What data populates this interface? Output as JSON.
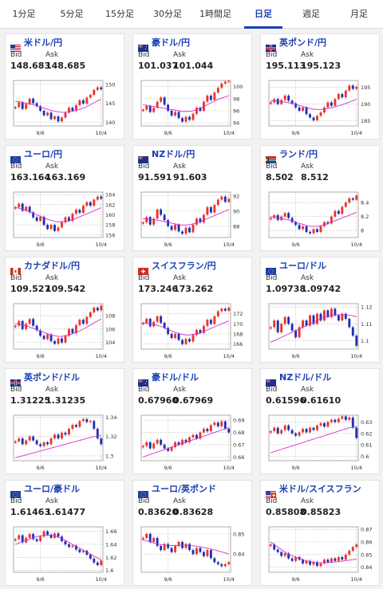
{
  "tabs": [
    {
      "label": "1分足",
      "active": false
    },
    {
      "label": "5分足",
      "active": false
    },
    {
      "label": "15分足",
      "active": false
    },
    {
      "label": "30分足",
      "active": false
    },
    {
      "label": "1時間足",
      "active": false
    },
    {
      "label": "日足",
      "active": true
    },
    {
      "label": "週足",
      "active": false
    },
    {
      "label": "月足",
      "active": false
    }
  ],
  "labels": {
    "bid": "Bid",
    "ask": "Ask"
  },
  "chart_style": {
    "up": "#e8352b",
    "down": "#1f2fb5",
    "ma": "#d22fd2",
    "grid": "#b8b8b8"
  },
  "pairs": [
    {
      "name": "米ドル/円",
      "flag": "us",
      "bid": "148.683",
      "ask": "148.685",
      "chart_data": {
        "type": "candlestick",
        "x_labels": [
          "9/6",
          "10/4"
        ],
        "y_ticks": [
          "150",
          "145",
          "140"
        ],
        "ylim": [
          139,
          151
        ],
        "trend": [
          144.0,
          145.2,
          143.5,
          144.8,
          146.2,
          145.0,
          144.2,
          143.0,
          141.8,
          142.5,
          140.8,
          141.5,
          140.2,
          141.2,
          142.5,
          143.8,
          143.0,
          144.5,
          145.8,
          144.9,
          146.5,
          147.2,
          148.5,
          149.2,
          148.7
        ],
        "ma": [
          145.5,
          145.4,
          145.2,
          145.0,
          144.8,
          144.6,
          144.3,
          144.0,
          143.7,
          143.4,
          143.1,
          142.9,
          142.7,
          142.6,
          142.6,
          142.7,
          142.9,
          143.1,
          143.4,
          143.7,
          144.1,
          144.6,
          145.1,
          145.6,
          146.0
        ]
      }
    },
    {
      "name": "豪ドル/円",
      "flag": "au",
      "bid": "101.037",
      "ask": "101.044",
      "chart_data": {
        "type": "candlestick",
        "x_labels": [
          "9/6",
          "10/4"
        ],
        "y_ticks": [
          "100",
          "98",
          "96",
          "94"
        ],
        "ylim": [
          93.5,
          101
        ],
        "trend": [
          96.2,
          96.8,
          95.8,
          96.5,
          97.5,
          98.2,
          97.0,
          96.0,
          95.2,
          95.8,
          94.8,
          94.2,
          95.0,
          94.5,
          95.5,
          96.5,
          96.0,
          97.5,
          98.5,
          97.8,
          99.0,
          99.8,
          100.5,
          100.8,
          100.9
        ],
        "ma": [
          97.0,
          96.9,
          96.8,
          96.7,
          96.6,
          96.5,
          96.4,
          96.3,
          96.2,
          96.1,
          96.0,
          95.9,
          95.9,
          95.9,
          96.0,
          96.2,
          96.4,
          96.7,
          97.0,
          97.3,
          97.6,
          97.9,
          98.1,
          98.3,
          98.5
        ]
      }
    },
    {
      "name": "英ポンド/円",
      "flag": "gb",
      "bid": "195.113",
      "ask": "195.123",
      "chart_data": {
        "type": "candlestick",
        "x_labels": [
          "9/6",
          "10/4"
        ],
        "y_ticks": [
          "195",
          "190",
          "185"
        ],
        "ylim": [
          183.5,
          197
        ],
        "trend": [
          190.5,
          191.5,
          190.0,
          191.2,
          192.5,
          191.0,
          190.2,
          189.0,
          188.0,
          189.0,
          187.0,
          186.0,
          185.2,
          186.5,
          187.5,
          189.0,
          190.5,
          189.5,
          191.5,
          193.0,
          192.0,
          194.0,
          195.5,
          194.5,
          195.1
        ],
        "ma": [
          191.0,
          190.9,
          190.8,
          190.7,
          190.6,
          190.4,
          190.2,
          189.9,
          189.6,
          189.3,
          189.0,
          188.7,
          188.5,
          188.4,
          188.4,
          188.5,
          188.7,
          188.9,
          189.2,
          189.5,
          189.8,
          190.2,
          190.6,
          191.0,
          191.4
        ]
      }
    },
    {
      "name": "ユーロ/円",
      "flag": "eu",
      "bid": "163.164",
      "ask": "163.169",
      "chart_data": {
        "type": "candlestick",
        "x_labels": [
          "9/6",
          "10/4"
        ],
        "y_ticks": [
          "164",
          "162",
          "160",
          "158",
          "156"
        ],
        "ylim": [
          155.5,
          164.5
        ],
        "trend": [
          161.5,
          162.2,
          160.8,
          161.6,
          160.5,
          159.5,
          158.8,
          159.6,
          158.0,
          157.2,
          158.0,
          156.8,
          157.5,
          158.5,
          159.5,
          158.8,
          160.2,
          161.0,
          160.4,
          161.8,
          162.5,
          161.8,
          163.0,
          163.6,
          163.2
        ],
        "ma": [
          161.5,
          161.3,
          161.1,
          160.9,
          160.6,
          160.3,
          160.0,
          159.7,
          159.4,
          159.1,
          158.9,
          158.7,
          158.6,
          158.6,
          158.7,
          158.8,
          159.0,
          159.3,
          159.6,
          159.9,
          160.2,
          160.5,
          160.8,
          161.1,
          161.4
        ]
      }
    },
    {
      "name": "NZドル/円",
      "flag": "nz",
      "bid": "91.591",
      "ask": "91.603",
      "chart_data": {
        "type": "candlestick",
        "x_labels": [
          "9/6",
          "10/4"
        ],
        "y_ticks": [
          "92",
          "90",
          "88"
        ],
        "ylim": [
          86.5,
          92.5
        ],
        "trend": [
          88.5,
          89.2,
          88.2,
          89.0,
          90.2,
          89.5,
          88.8,
          88.0,
          87.5,
          88.2,
          87.3,
          87.0,
          87.8,
          87.2,
          88.2,
          89.0,
          88.5,
          89.5,
          90.5,
          89.8,
          90.8,
          91.5,
          91.9,
          91.2,
          91.6
        ],
        "ma": [
          89.0,
          88.95,
          88.9,
          88.85,
          88.8,
          88.7,
          88.6,
          88.5,
          88.4,
          88.3,
          88.2,
          88.15,
          88.15,
          88.2,
          88.3,
          88.45,
          88.6,
          88.8,
          89.0,
          89.2,
          89.4,
          89.6,
          89.8,
          90.0,
          90.2
        ]
      }
    },
    {
      "name": "ランド/円",
      "flag": "za",
      "bid": "8.502",
      "ask": "8.512",
      "chart_data": {
        "type": "candlestick",
        "x_labels": [
          "9/6",
          "10/4"
        ],
        "y_ticks": [
          "8.4",
          "8.2",
          "8"
        ],
        "ylim": [
          7.9,
          8.55
        ],
        "trend": [
          8.18,
          8.22,
          8.15,
          8.2,
          8.25,
          8.18,
          8.12,
          8.08,
          8.02,
          8.06,
          7.98,
          7.96,
          8.02,
          7.98,
          8.06,
          8.12,
          8.1,
          8.2,
          8.28,
          8.24,
          8.34,
          8.4,
          8.46,
          8.44,
          8.5
        ],
        "ma": [
          8.2,
          8.19,
          8.18,
          8.17,
          8.16,
          8.15,
          8.14,
          8.12,
          8.1,
          8.09,
          8.07,
          8.06,
          8.06,
          8.06,
          8.07,
          8.08,
          8.1,
          8.12,
          8.14,
          8.16,
          8.18,
          8.2,
          8.22,
          8.24,
          8.26
        ]
      }
    },
    {
      "name": "カナダドル/円",
      "flag": "ca",
      "bid": "109.527",
      "ask": "109.542",
      "chart_data": {
        "type": "candlestick",
        "x_labels": [
          "9/6",
          "10/4"
        ],
        "y_ticks": [
          "108",
          "106",
          "104"
        ],
        "ylim": [
          103,
          109.8
        ],
        "trend": [
          106.5,
          107.2,
          106.0,
          106.8,
          107.5,
          106.5,
          105.8,
          105.0,
          104.5,
          105.2,
          104.2,
          103.8,
          104.6,
          104.0,
          105.0,
          106.0,
          105.4,
          106.6,
          107.4,
          106.8,
          107.8,
          108.5,
          109.2,
          108.8,
          109.5
        ],
        "ma": [
          106.8,
          106.7,
          106.6,
          106.5,
          106.3,
          106.1,
          105.9,
          105.7,
          105.5,
          105.3,
          105.1,
          105.0,
          104.9,
          104.9,
          105.0,
          105.1,
          105.3,
          105.5,
          105.7,
          106.0,
          106.3,
          106.6,
          106.9,
          107.2,
          107.5
        ]
      }
    },
    {
      "name": "スイスフラン/円",
      "flag": "ch",
      "bid": "173.246",
      "ask": "173.262",
      "chart_data": {
        "type": "candlestick",
        "x_labels": [
          "9/6",
          "10/4"
        ],
        "y_ticks": [
          "172",
          "170",
          "168",
          "166"
        ],
        "ylim": [
          165,
          174
        ],
        "trend": [
          170.2,
          171.0,
          169.5,
          170.4,
          171.5,
          170.2,
          169.2,
          168.0,
          167.2,
          168.0,
          166.8,
          166.0,
          167.0,
          166.5,
          167.8,
          168.8,
          168.2,
          169.6,
          170.8,
          170.0,
          171.5,
          172.5,
          173.0,
          172.6,
          173.2
        ],
        "ma": [
          170.2,
          170.1,
          170.0,
          169.9,
          169.7,
          169.5,
          169.2,
          168.9,
          168.6,
          168.3,
          168.1,
          167.9,
          167.8,
          167.8,
          167.9,
          168.0,
          168.2,
          168.5,
          168.8,
          169.1,
          169.4,
          169.7,
          170.0,
          170.3,
          170.6
        ]
      }
    },
    {
      "name": "ユーロ/ドル",
      "flag": "eu",
      "bid": "1.09738",
      "ask": "1.09742",
      "chart_data": {
        "type": "candlestick",
        "x_labels": [
          "9/6",
          "10/4"
        ],
        "y_ticks": [
          "1.12",
          "1.11",
          "1.1"
        ],
        "ylim": [
          1.095,
          1.122
        ],
        "trend": [
          1.108,
          1.112,
          1.105,
          1.11,
          1.114,
          1.11,
          1.106,
          1.102,
          1.108,
          1.112,
          1.109,
          1.115,
          1.11,
          1.116,
          1.112,
          1.118,
          1.114,
          1.119,
          1.115,
          1.112,
          1.116,
          1.113,
          1.108,
          1.103,
          1.097
        ],
        "ma": [
          1.099,
          1.1,
          1.101,
          1.102,
          1.103,
          1.104,
          1.105,
          1.106,
          1.107,
          1.108,
          1.109,
          1.11,
          1.111,
          1.112,
          1.113,
          1.114,
          1.1145,
          1.115,
          1.1152,
          1.1154,
          1.1155,
          1.1154,
          1.1152,
          1.1148,
          1.1142
        ]
      }
    },
    {
      "name": "英ポンド/ドル",
      "flag": "gb",
      "bid": "1.31225",
      "ask": "1.31235",
      "chart_data": {
        "type": "candlestick",
        "x_labels": [
          "9/6",
          "10/4"
        ],
        "y_ticks": [
          "1.34",
          "1.32",
          "1.3"
        ],
        "ylim": [
          1.295,
          1.342
        ],
        "trend": [
          1.315,
          1.318,
          1.312,
          1.316,
          1.32,
          1.316,
          1.312,
          1.31,
          1.314,
          1.312,
          1.318,
          1.322,
          1.318,
          1.324,
          1.322,
          1.328,
          1.332,
          1.33,
          1.336,
          1.338,
          1.335,
          1.336,
          1.328,
          1.318,
          1.312
        ],
        "ma": [
          1.298,
          1.299,
          1.3,
          1.301,
          1.302,
          1.303,
          1.304,
          1.305,
          1.306,
          1.307,
          1.308,
          1.309,
          1.31,
          1.311,
          1.312,
          1.313,
          1.314,
          1.315,
          1.316,
          1.317,
          1.318,
          1.319,
          1.32,
          1.3205,
          1.321
        ]
      }
    },
    {
      "name": "豪ドル/ドル",
      "flag": "au",
      "bid": "0.67960",
      "ask": "0.67969",
      "chart_data": {
        "type": "candlestick",
        "x_labels": [
          "9/6",
          "10/4"
        ],
        "y_ticks": [
          "0.69",
          "0.68",
          "0.67",
          "0.66"
        ],
        "ylim": [
          0.657,
          0.694
        ],
        "trend": [
          0.669,
          0.672,
          0.667,
          0.671,
          0.674,
          0.67,
          0.667,
          0.665,
          0.668,
          0.672,
          0.67,
          0.674,
          0.672,
          0.676,
          0.678,
          0.675,
          0.68,
          0.683,
          0.681,
          0.686,
          0.688,
          0.685,
          0.689,
          0.683,
          0.68
        ],
        "ma": [
          0.66,
          0.661,
          0.662,
          0.663,
          0.664,
          0.665,
          0.666,
          0.667,
          0.668,
          0.669,
          0.67,
          0.671,
          0.672,
          0.673,
          0.674,
          0.675,
          0.676,
          0.677,
          0.678,
          0.679,
          0.68,
          0.681,
          0.682,
          0.683,
          0.684
        ]
      }
    },
    {
      "name": "NZドル/ドル",
      "flag": "nz",
      "bid": "0.61596",
      "ask": "0.61610",
      "chart_data": {
        "type": "candlestick",
        "x_labels": [
          "9/6",
          "10/4"
        ],
        "y_ticks": [
          "0.63",
          "0.62",
          "0.61",
          "0.6"
        ],
        "ylim": [
          0.596,
          0.636
        ],
        "trend": [
          0.622,
          0.625,
          0.62,
          0.623,
          0.627,
          0.623,
          0.62,
          0.618,
          0.621,
          0.624,
          0.621,
          0.625,
          0.623,
          0.627,
          0.629,
          0.626,
          0.63,
          0.632,
          0.63,
          0.633,
          0.635,
          0.632,
          0.634,
          0.625,
          0.616
        ],
        "ma": [
          0.603,
          0.604,
          0.605,
          0.606,
          0.607,
          0.608,
          0.609,
          0.61,
          0.611,
          0.612,
          0.613,
          0.614,
          0.615,
          0.616,
          0.617,
          0.618,
          0.619,
          0.62,
          0.621,
          0.622,
          0.623,
          0.624,
          0.625,
          0.6255,
          0.626
        ]
      }
    },
    {
      "name": "ユーロ/豪ドル",
      "flag": "eu",
      "bid": "1.61463",
      "ask": "1.61477",
      "chart_data": {
        "type": "candlestick",
        "x_labels": [
          "9/6",
          "10/4"
        ],
        "y_ticks": [
          "1.66",
          "1.64",
          "1.62",
          "1.6"
        ],
        "ylim": [
          1.597,
          1.667
        ],
        "trend": [
          1.648,
          1.654,
          1.643,
          1.65,
          1.656,
          1.648,
          1.645,
          1.652,
          1.66,
          1.655,
          1.65,
          1.657,
          1.652,
          1.645,
          1.64,
          1.636,
          1.638,
          1.632,
          1.628,
          1.63,
          1.624,
          1.618,
          1.612,
          1.608,
          1.615
        ],
        "ma": [
          1.64,
          1.642,
          1.644,
          1.646,
          1.648,
          1.65,
          1.652,
          1.653,
          1.654,
          1.654,
          1.654,
          1.653,
          1.651,
          1.649,
          1.646,
          1.643,
          1.64,
          1.637,
          1.634,
          1.631,
          1.628,
          1.625,
          1.622,
          1.619,
          1.616
        ]
      }
    },
    {
      "name": "ユーロ/英ポンド",
      "flag": "eu",
      "bid": "0.83620",
      "ask": "0.83628",
      "chart_data": {
        "type": "candlestick",
        "x_labels": [
          "9/6",
          "10/4"
        ],
        "y_ticks": [
          "0.85",
          "0.84"
        ],
        "ylim": [
          0.831,
          0.8535
        ],
        "trend": [
          0.848,
          0.85,
          0.846,
          0.848,
          0.844,
          0.842,
          0.845,
          0.843,
          0.841,
          0.844,
          0.846,
          0.843,
          0.845,
          0.842,
          0.84,
          0.843,
          0.841,
          0.839,
          0.842,
          0.838,
          0.836,
          0.835,
          0.834,
          0.835,
          0.836
        ],
        "ma": [
          0.847,
          0.8465,
          0.846,
          0.8455,
          0.845,
          0.8447,
          0.8445,
          0.8443,
          0.8442,
          0.8442,
          0.8443,
          0.8444,
          0.8444,
          0.8443,
          0.8441,
          0.8439,
          0.8436,
          0.8433,
          0.8429,
          0.8425,
          0.8421,
          0.8416,
          0.8411,
          0.8406,
          0.84
        ]
      }
    },
    {
      "name": "米ドル/スイスフラン",
      "flag": "ch_us",
      "bid": "0.85808",
      "ask": "0.85823",
      "chart_data": {
        "type": "candlestick",
        "x_labels": [
          "9/6",
          "10/4"
        ],
        "y_ticks": [
          "0.87",
          "0.86",
          "0.85",
          "0.84"
        ],
        "ylim": [
          0.836,
          0.872
        ],
        "trend": [
          0.858,
          0.854,
          0.852,
          0.849,
          0.851,
          0.847,
          0.845,
          0.848,
          0.846,
          0.843,
          0.845,
          0.842,
          0.844,
          0.841,
          0.843,
          0.846,
          0.844,
          0.847,
          0.845,
          0.848,
          0.846,
          0.85,
          0.853,
          0.856,
          0.858
        ],
        "ma": [
          0.86,
          0.858,
          0.856,
          0.854,
          0.852,
          0.85,
          0.849,
          0.848,
          0.847,
          0.846,
          0.845,
          0.8445,
          0.844,
          0.8438,
          0.8437,
          0.8437,
          0.8438,
          0.844,
          0.8442,
          0.8445,
          0.8448,
          0.8452,
          0.8456,
          0.846,
          0.8465
        ]
      }
    }
  ]
}
